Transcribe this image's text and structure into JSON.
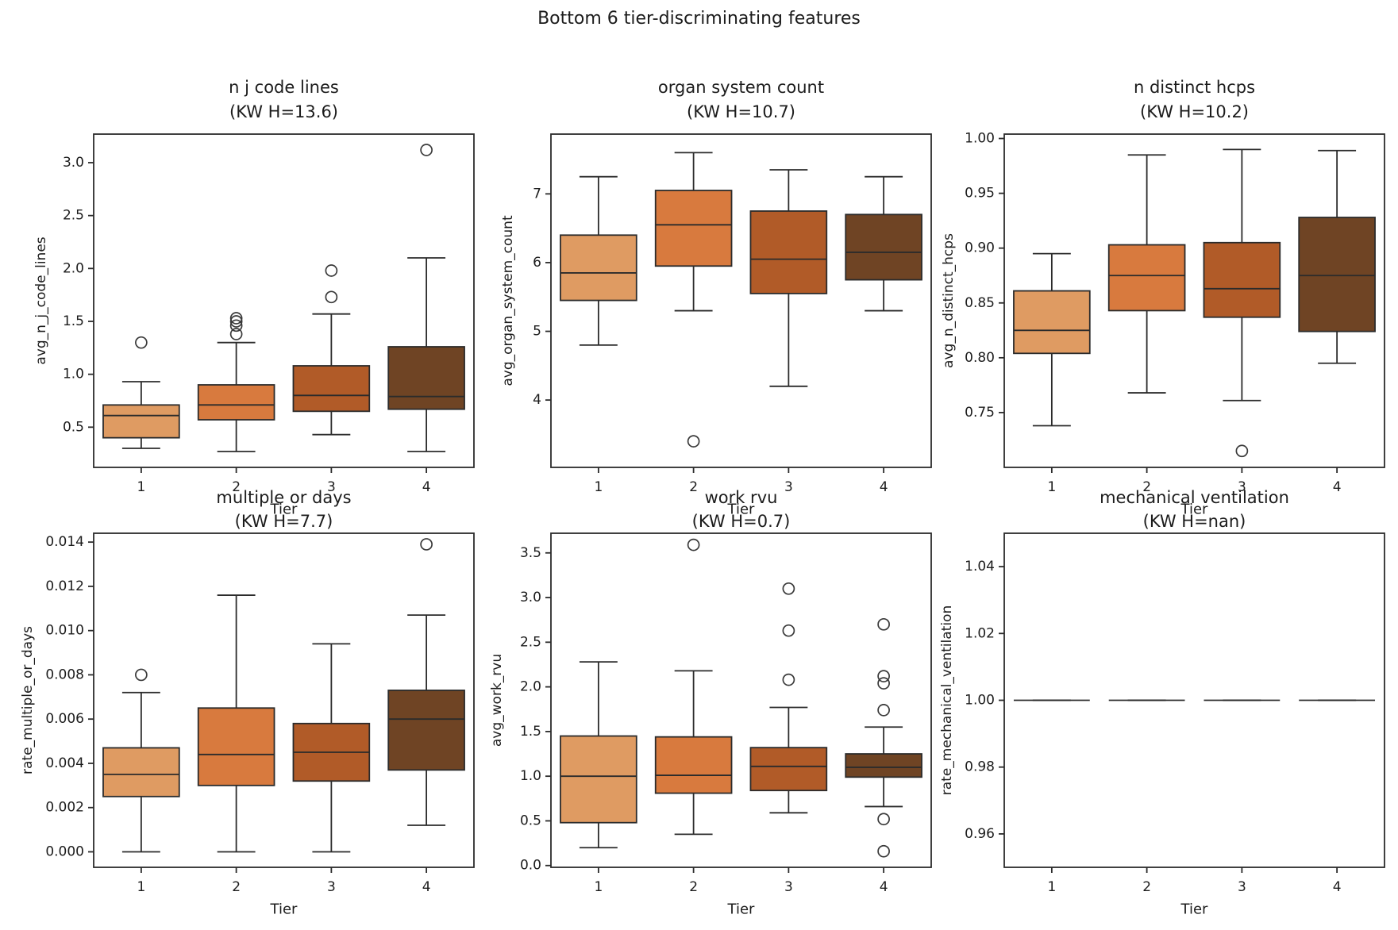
{
  "figure": {
    "title": "Bottom 6 tier-discriminating features",
    "xlabel": "Tier",
    "tier_labels": [
      "1",
      "2",
      "3",
      "4"
    ],
    "tier_colors": [
      "#df9b62",
      "#d87a3e",
      "#b15b28",
      "#6f4424"
    ],
    "line_color": "#2b2b2b",
    "flier_color": "#3a3a3a",
    "background": "#ffffff"
  },
  "chart_data": [
    {
      "type": "boxplot",
      "title": "n j code lines",
      "subtitle": "(KW H=13.6)",
      "kw_h": "13.6",
      "ylabel": "avg_n_j_code_lines",
      "xlabel": "Tier",
      "categories": [
        "1",
        "2",
        "3",
        "4"
      ],
      "ylim": [
        0.12,
        3.27
      ],
      "yticks": [
        0.5,
        1.0,
        1.5,
        2.0,
        2.5,
        3.0
      ],
      "ytick_labels": [
        "0.5",
        "1.0",
        "1.5",
        "2.0",
        "2.5",
        "3.0"
      ],
      "boxes": [
        {
          "tier": "1",
          "whisker_low": 0.3,
          "q1": 0.4,
          "median": 0.61,
          "q3": 0.71,
          "whisker_high": 0.93,
          "outliers": [
            1.3
          ]
        },
        {
          "tier": "2",
          "whisker_low": 0.27,
          "q1": 0.57,
          "median": 0.71,
          "q3": 0.9,
          "whisker_high": 1.3,
          "outliers": [
            1.38,
            1.46,
            1.5,
            1.53
          ]
        },
        {
          "tier": "3",
          "whisker_low": 0.43,
          "q1": 0.65,
          "median": 0.8,
          "q3": 1.08,
          "whisker_high": 1.57,
          "outliers": [
            1.73,
            1.98
          ]
        },
        {
          "tier": "4",
          "whisker_low": 0.27,
          "q1": 0.67,
          "median": 0.79,
          "q3": 1.26,
          "whisker_high": 2.1,
          "outliers": [
            3.12
          ]
        }
      ]
    },
    {
      "type": "boxplot",
      "title": "organ system count",
      "subtitle": "(KW H=10.7)",
      "kw_h": "10.7",
      "ylabel": "avg_organ_system_count",
      "xlabel": "Tier",
      "categories": [
        "1",
        "2",
        "3",
        "4"
      ],
      "ylim": [
        3.02,
        7.87
      ],
      "yticks": [
        4,
        5,
        6,
        7
      ],
      "ytick_labels": [
        "4",
        "5",
        "6",
        "7"
      ],
      "boxes": [
        {
          "tier": "1",
          "whisker_low": 4.8,
          "q1": 5.45,
          "median": 5.85,
          "q3": 6.4,
          "whisker_high": 7.25,
          "outliers": []
        },
        {
          "tier": "2",
          "whisker_low": 5.3,
          "q1": 5.95,
          "median": 6.55,
          "q3": 7.05,
          "whisker_high": 7.6,
          "outliers": [
            3.4
          ]
        },
        {
          "tier": "3",
          "whisker_low": 4.2,
          "q1": 5.55,
          "median": 6.05,
          "q3": 6.75,
          "whisker_high": 7.35,
          "outliers": []
        },
        {
          "tier": "4",
          "whisker_low": 5.3,
          "q1": 5.75,
          "median": 6.15,
          "q3": 6.7,
          "whisker_high": 7.25,
          "outliers": []
        }
      ]
    },
    {
      "type": "boxplot",
      "title": "n distinct hcps",
      "subtitle": "(KW H=10.2)",
      "kw_h": "10.2",
      "ylabel": "avg_n_distinct_hcps",
      "xlabel": "Tier",
      "categories": [
        "1",
        "2",
        "3",
        "4"
      ],
      "ylim": [
        0.7,
        1.004
      ],
      "yticks": [
        0.75,
        0.8,
        0.85,
        0.9,
        0.95,
        1.0
      ],
      "ytick_labels": [
        "0.75",
        "0.80",
        "0.85",
        "0.90",
        "0.95",
        "1.00"
      ],
      "boxes": [
        {
          "tier": "1",
          "whisker_low": 0.738,
          "q1": 0.804,
          "median": 0.825,
          "q3": 0.861,
          "whisker_high": 0.895,
          "outliers": []
        },
        {
          "tier": "2",
          "whisker_low": 0.768,
          "q1": 0.843,
          "median": 0.875,
          "q3": 0.903,
          "whisker_high": 0.985,
          "outliers": []
        },
        {
          "tier": "3",
          "whisker_low": 0.761,
          "q1": 0.837,
          "median": 0.863,
          "q3": 0.905,
          "whisker_high": 0.99,
          "outliers": [
            0.715
          ]
        },
        {
          "tier": "4",
          "whisker_low": 0.795,
          "q1": 0.824,
          "median": 0.875,
          "q3": 0.928,
          "whisker_high": 0.989,
          "outliers": []
        }
      ]
    },
    {
      "type": "boxplot",
      "title": "multiple or days",
      "subtitle": "(KW H=7.7)",
      "kw_h": "7.7",
      "ylabel": "rate_multiple_or_days",
      "xlabel": "Tier",
      "categories": [
        "1",
        "2",
        "3",
        "4"
      ],
      "ylim": [
        -0.0007,
        0.0144
      ],
      "yticks": [
        0.0,
        0.002,
        0.004,
        0.006,
        0.008,
        0.01,
        0.012,
        0.014
      ],
      "ytick_labels": [
        "0.000",
        "0.002",
        "0.004",
        "0.006",
        "0.008",
        "0.010",
        "0.012",
        "0.014"
      ],
      "boxes": [
        {
          "tier": "1",
          "whisker_low": 0.0,
          "q1": 0.0025,
          "median": 0.0035,
          "q3": 0.0047,
          "whisker_high": 0.0072,
          "outliers": [
            0.008
          ]
        },
        {
          "tier": "2",
          "whisker_low": 0.0,
          "q1": 0.003,
          "median": 0.0044,
          "q3": 0.0065,
          "whisker_high": 0.0116,
          "outliers": []
        },
        {
          "tier": "3",
          "whisker_low": 0.0,
          "q1": 0.0032,
          "median": 0.0045,
          "q3": 0.0058,
          "whisker_high": 0.0094,
          "outliers": []
        },
        {
          "tier": "4",
          "whisker_low": 0.0012,
          "q1": 0.0037,
          "median": 0.006,
          "q3": 0.0073,
          "whisker_high": 0.0107,
          "outliers": [
            0.0139
          ]
        }
      ]
    },
    {
      "type": "boxplot",
      "title": "work rvu",
      "subtitle": "(KW H=0.7)",
      "kw_h": "0.7",
      "ylabel": "avg_work_rvu",
      "xlabel": "Tier",
      "categories": [
        "1",
        "2",
        "3",
        "4"
      ],
      "ylim": [
        -0.02,
        3.72
      ],
      "yticks": [
        0.0,
        0.5,
        1.0,
        1.5,
        2.0,
        2.5,
        3.0,
        3.5
      ],
      "ytick_labels": [
        "0.0",
        "0.5",
        "1.0",
        "1.5",
        "2.0",
        "2.5",
        "3.0",
        "3.5"
      ],
      "boxes": [
        {
          "tier": "1",
          "whisker_low": 0.2,
          "q1": 0.48,
          "median": 1.0,
          "q3": 1.45,
          "whisker_high": 2.28,
          "outliers": []
        },
        {
          "tier": "2",
          "whisker_low": 0.35,
          "q1": 0.81,
          "median": 1.01,
          "q3": 1.44,
          "whisker_high": 2.18,
          "outliers": [
            3.59
          ]
        },
        {
          "tier": "3",
          "whisker_low": 0.59,
          "q1": 0.84,
          "median": 1.11,
          "q3": 1.32,
          "whisker_high": 1.77,
          "outliers": [
            2.08,
            2.63,
            3.1
          ]
        },
        {
          "tier": "4",
          "whisker_low": 0.66,
          "q1": 0.99,
          "median": 1.1,
          "q3": 1.25,
          "whisker_high": 1.55,
          "outliers": [
            2.7,
            2.12,
            2.04,
            1.74,
            0.52,
            0.16
          ]
        }
      ]
    },
    {
      "type": "boxplot",
      "title": "mechanical ventilation",
      "subtitle": "(KW H=nan)",
      "kw_h": "nan",
      "ylabel": "rate_mechanical_ventilation",
      "xlabel": "Tier",
      "categories": [
        "1",
        "2",
        "3",
        "4"
      ],
      "ylim": [
        0.95,
        1.05
      ],
      "yticks": [
        0.96,
        0.98,
        1.0,
        1.02,
        1.04
      ],
      "ytick_labels": [
        "0.96",
        "0.98",
        "1.00",
        "1.02",
        "1.04"
      ],
      "boxes": [
        {
          "tier": "1",
          "whisker_low": 1.0,
          "q1": 1.0,
          "median": 1.0,
          "q3": 1.0,
          "whisker_high": 1.0,
          "outliers": []
        },
        {
          "tier": "2",
          "whisker_low": 1.0,
          "q1": 1.0,
          "median": 1.0,
          "q3": 1.0,
          "whisker_high": 1.0,
          "outliers": []
        },
        {
          "tier": "3",
          "whisker_low": 1.0,
          "q1": 1.0,
          "median": 1.0,
          "q3": 1.0,
          "whisker_high": 1.0,
          "outliers": []
        },
        {
          "tier": "4",
          "whisker_low": 1.0,
          "q1": 1.0,
          "median": 1.0,
          "q3": 1.0,
          "whisker_high": 1.0,
          "outliers": []
        }
      ]
    }
  ]
}
